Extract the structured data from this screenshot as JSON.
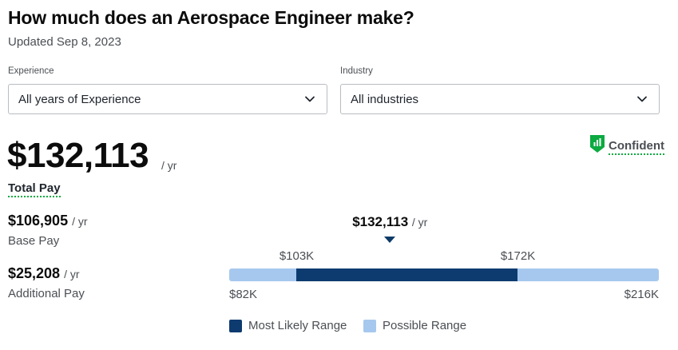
{
  "header": {
    "title": "How much does an Aerospace Engineer make?",
    "updated": "Updated Sep 8, 2023"
  },
  "filters": {
    "experience": {
      "label": "Experience",
      "value": "All years of Experience",
      "icon": "chevron-down-icon"
    },
    "industry": {
      "label": "Industry",
      "value": "All industries",
      "icon": "chevron-down-icon"
    }
  },
  "pay": {
    "total": "$132,113",
    "total_unit": "/ yr",
    "total_label": "Total Pay",
    "base": "$106,905",
    "base_unit": "/ yr",
    "base_label": "Base Pay",
    "additional": "$25,208",
    "additional_unit": "/ yr",
    "additional_label": "Additional Pay"
  },
  "confidence": {
    "label": "Confident",
    "icon": "bar-chart-shield-icon",
    "color": "#0caa41"
  },
  "range": {
    "marker_value": "$132,113",
    "marker_unit": "/ yr",
    "likely_low": "$103K",
    "likely_high": "$172K",
    "min": "$82K",
    "max": "$216K",
    "min_num": 82,
    "max_num": 216,
    "likely_low_num": 103,
    "likely_high_num": 172,
    "marker_num": 132.113
  },
  "legend": {
    "likely": "Most Likely Range",
    "possible": "Possible Range"
  },
  "colors": {
    "likely": "#0d3b6f",
    "possible": "#a6c8ee",
    "accent_green": "#0caa41"
  }
}
